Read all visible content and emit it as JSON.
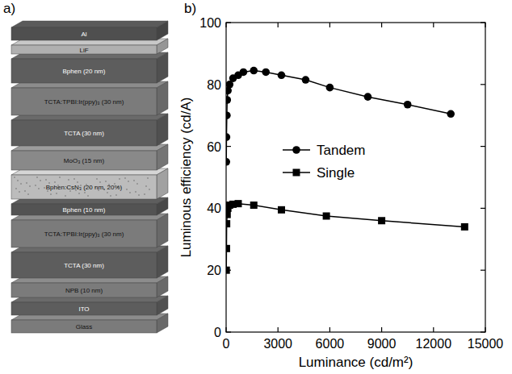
{
  "panel_labels": [
    "a)",
    "b)"
  ],
  "diagram": {
    "layers": [
      {
        "label": "Al"
      },
      {
        "label": "LiF"
      },
      {
        "label": "Bphen (20 nm)"
      },
      {
        "label": "TCTA:TPBI:Ir(ppy)₃ (30 nm)"
      },
      {
        "label": "TCTA (30 nm)"
      },
      {
        "label": "MoO₃ (15 nm)"
      },
      {
        "label": "Bphen:CsN₃ (20 nm, 20%)"
      },
      {
        "label": "Bphen (10 nm)"
      },
      {
        "label": "TCTA:TPBI:Ir(ppy)₃ (30 nm)"
      },
      {
        "label": "TCTA (30 nm)"
      },
      {
        "label": "NPB (10 nm)"
      },
      {
        "label": "ITO"
      },
      {
        "label": "Glass"
      }
    ]
  },
  "chart_data": {
    "type": "line",
    "x_label": "Luminance (cd/m²)",
    "y_label": "Luminous efficiency (cd/A)",
    "xlim": [
      0,
      15000
    ],
    "xticks": [
      0,
      3000,
      6000,
      9000,
      12000,
      15000
    ],
    "ylim": [
      0,
      100
    ],
    "yticks": [
      0,
      20,
      40,
      60,
      80,
      100
    ],
    "grid": false,
    "legend": "center",
    "series": [
      {
        "name": "Tandem",
        "color": "#000000",
        "marker": "circle",
        "x": [
          10,
          20,
          40,
          60,
          100,
          200,
          400,
          700,
          1000,
          1600,
          2300,
          3200,
          4600,
          6000,
          8200,
          10500,
          13000
        ],
        "values": [
          55,
          63,
          70,
          75,
          78,
          80,
          82,
          83,
          84,
          84.5,
          84,
          83,
          81.5,
          79,
          76,
          73.5,
          70.5
        ]
      },
      {
        "name": "Single",
        "color": "#000000",
        "marker": "square",
        "x": [
          10,
          20,
          30,
          60,
          100,
          200,
          400,
          700,
          1600,
          3200,
          5800,
          9000,
          13800
        ],
        "values": [
          20,
          27,
          35,
          38,
          40,
          41,
          41.3,
          41.5,
          41,
          39.5,
          37.5,
          36,
          34
        ]
      }
    ]
  }
}
